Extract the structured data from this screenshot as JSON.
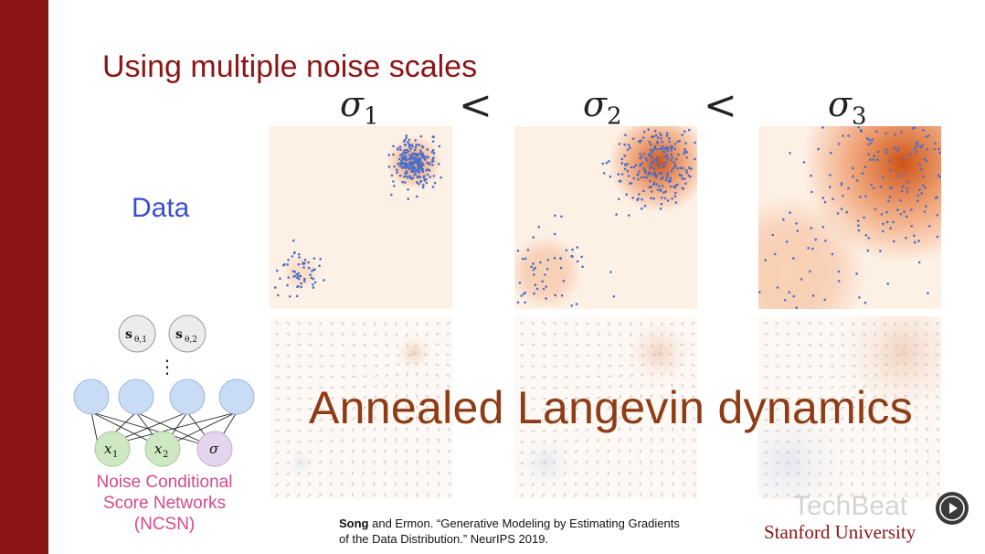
{
  "title": "Using multiple noise scales",
  "sigma_labels": [
    "σ",
    "σ",
    "σ"
  ],
  "sigma_subscripts": [
    "1",
    "2",
    "3"
  ],
  "less_than": "<",
  "data_label": "Data",
  "overlay_text": "Annealed Langevin dynamics",
  "network": {
    "score_labels": [
      "s",
      "s"
    ],
    "score_subscripts": [
      "θ,1",
      "θ,2"
    ],
    "ellipsis": "⋮",
    "input_labels": [
      "x",
      "x",
      "σ"
    ],
    "input_subscripts": [
      "1",
      "2",
      ""
    ],
    "caption_lines": [
      "Noise Conditional",
      "Score Networks",
      "(NCSN)"
    ]
  },
  "citation": {
    "author": "Song",
    "line1_rest": " and Ermon. “Generative Modeling by Estimating Gradients",
    "line2": "of the Data Distribution.” NeurIPS 2019."
  },
  "institution": "Stanford University",
  "watermark": "TechBeat",
  "icons": [
    "play-icon"
  ],
  "colors": {
    "stanford_red": "#8c1515",
    "data_blue": "#3a4fd0",
    "point_blue": "#4a6fc8",
    "density_orange": "#e8631a",
    "overlay_brown": "#8e3c16",
    "ncsn_pink": "#d4498a",
    "node_blue": "#c9dcf5",
    "node_green": "#cfe8c4",
    "node_purple": "#e4d4ee"
  }
}
